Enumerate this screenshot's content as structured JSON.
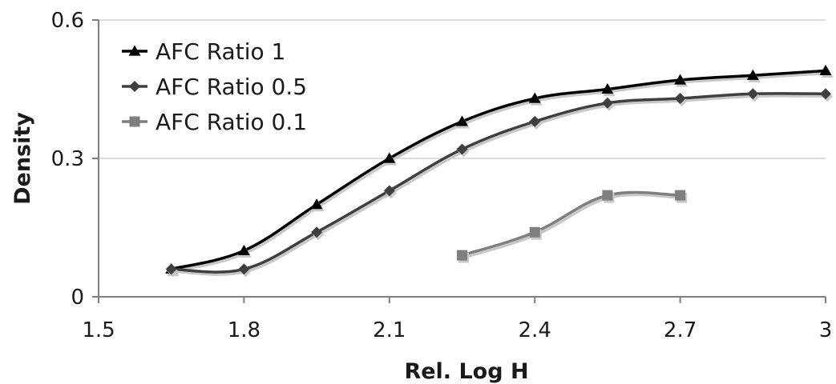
{
  "chart_data": {
    "type": "line",
    "title": "",
    "xlabel": "Rel. Log H",
    "ylabel": "Density",
    "xlim": [
      1.5,
      3
    ],
    "ylim": [
      0,
      0.6
    ],
    "x_ticks": [
      "1.5",
      "1.8",
      "2.1",
      "2.4",
      "2.7",
      "3"
    ],
    "y_ticks": [
      "0",
      "0.3",
      "0.6"
    ],
    "grid": "horizontal",
    "legend_position": "top-left",
    "smooth": true,
    "series": [
      {
        "name": "AFC Ratio 1",
        "marker": "triangle",
        "color": "#000000",
        "x": [
          1.65,
          1.8,
          1.95,
          2.1,
          2.25,
          2.4,
          2.55,
          2.7,
          2.85,
          3.0
        ],
        "y": [
          0.06,
          0.1,
          0.2,
          0.3,
          0.38,
          0.43,
          0.45,
          0.47,
          0.48,
          0.49
        ]
      },
      {
        "name": "AFC Ratio 0.5",
        "marker": "diamond",
        "color": "#3f3f3f",
        "x": [
          1.65,
          1.8,
          1.95,
          2.1,
          2.25,
          2.4,
          2.55,
          2.7,
          2.85,
          3.0
        ],
        "y": [
          0.06,
          0.06,
          0.14,
          0.23,
          0.32,
          0.38,
          0.42,
          0.43,
          0.44,
          0.44
        ]
      },
      {
        "name": "AFC Ratio 0.1",
        "marker": "square",
        "color": "#7f7f7f",
        "x": [
          2.25,
          2.4,
          2.55,
          2.7
        ],
        "y": [
          0.09,
          0.14,
          0.22,
          0.22
        ]
      }
    ]
  }
}
